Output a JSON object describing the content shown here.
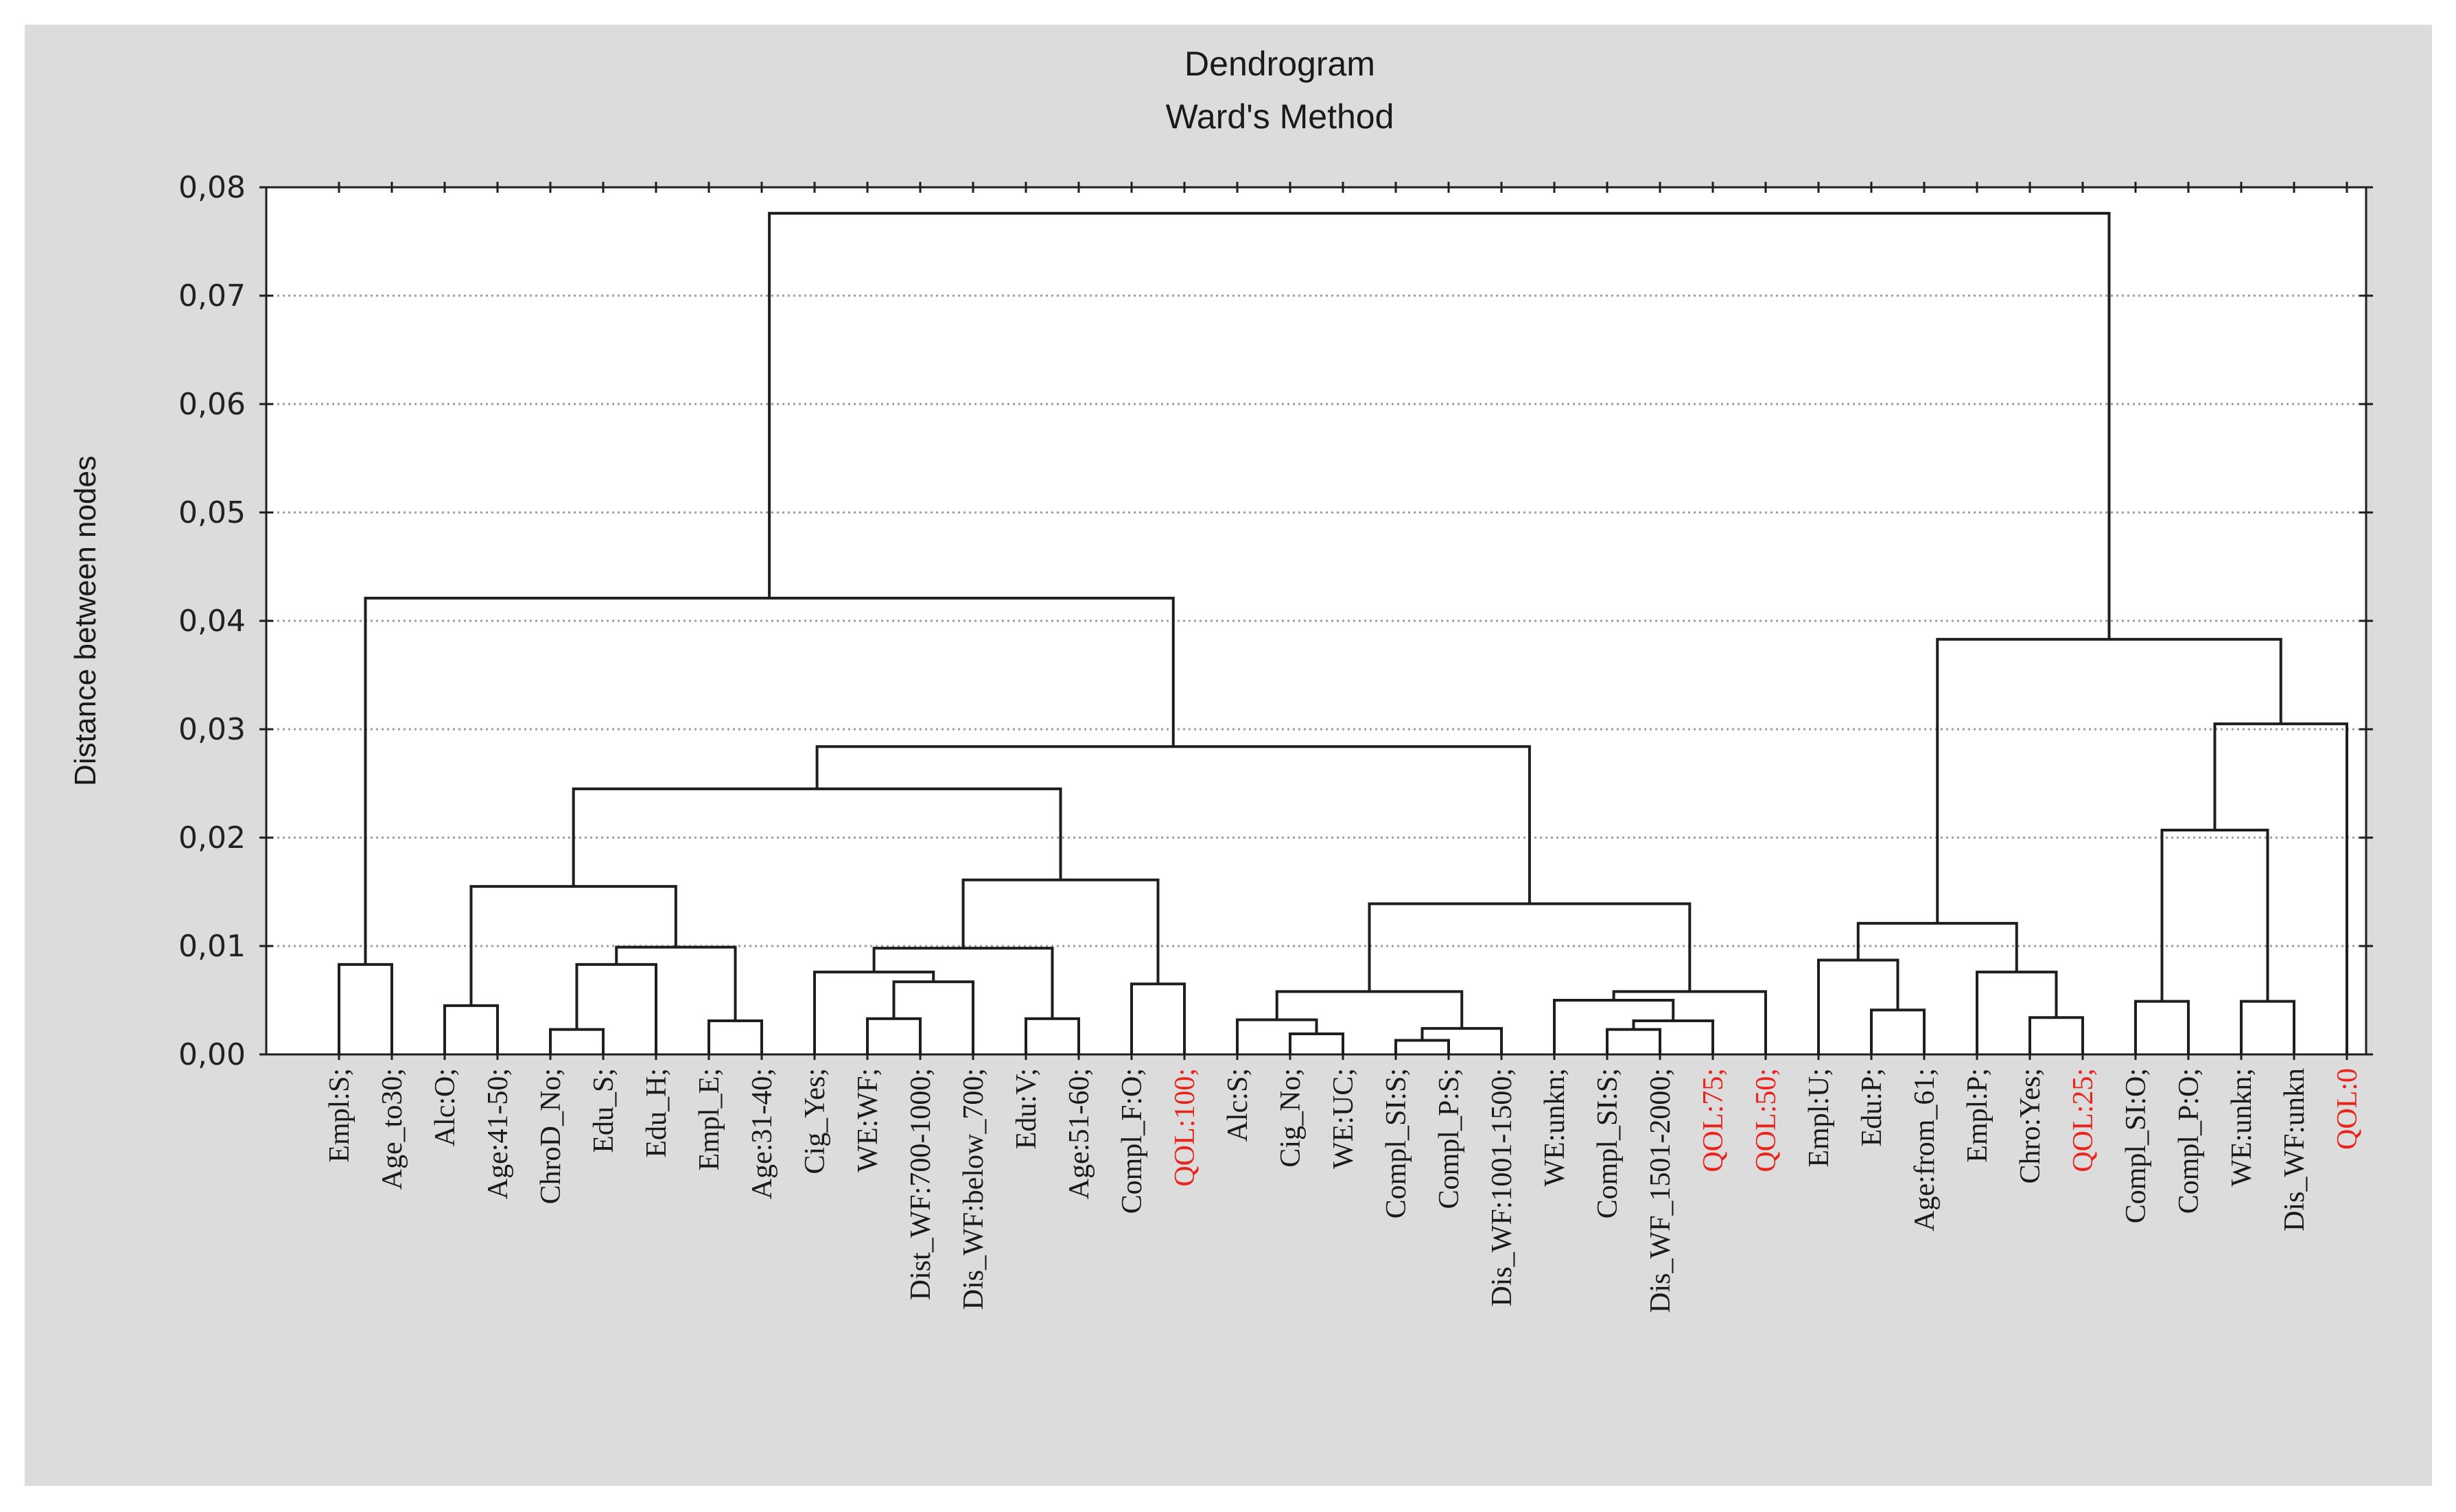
{
  "chart_data": {
    "type": "dendrogram",
    "title": "Dendrogram",
    "subtitle": "Ward's Method",
    "ylabel": "Distance between nodes",
    "xlabel": "",
    "ylim": [
      0,
      0.08
    ],
    "yticks": [
      0,
      0.01,
      0.02,
      0.03,
      0.04,
      0.05,
      0.06,
      0.07,
      0.08
    ],
    "ytick_labels": [
      "0,00",
      "0,01",
      "0,02",
      "0,03",
      "0,04",
      "0,05",
      "0,06",
      "0,07",
      "0,08"
    ],
    "grid": true,
    "highlight_color": "#e8241c",
    "leaves": [
      {
        "label": "Empl:S;",
        "highlight": false
      },
      {
        "label": "Age_to30;",
        "highlight": false
      },
      {
        "label": "Alc:O;",
        "highlight": false
      },
      {
        "label": "Age:41-50;",
        "highlight": false
      },
      {
        "label": "ChroD_No;",
        "highlight": false
      },
      {
        "label": "Edu_S;",
        "highlight": false
      },
      {
        "label": "Edu_H;",
        "highlight": false
      },
      {
        "label": "Empl_E;",
        "highlight": false
      },
      {
        "label": "Age:31-40;",
        "highlight": false
      },
      {
        "label": "Cig_Yes;",
        "highlight": false
      },
      {
        "label": "WE:WF;",
        "highlight": false
      },
      {
        "label": "Dist_WF:700-1000;",
        "highlight": false
      },
      {
        "label": "Dis_WF:below_700;",
        "highlight": false
      },
      {
        "label": "Edu:V;",
        "highlight": false
      },
      {
        "label": "Age:51-60;",
        "highlight": false
      },
      {
        "label": "Compl_F:O;",
        "highlight": false
      },
      {
        "label": "QOL:100;",
        "highlight": true
      },
      {
        "label": "Alc:S;",
        "highlight": false
      },
      {
        "label": "Cig_No;",
        "highlight": false
      },
      {
        "label": "WE:UC;",
        "highlight": false
      },
      {
        "label": "Compl_SI:S;",
        "highlight": false
      },
      {
        "label": "Compl_P:S;",
        "highlight": false
      },
      {
        "label": "Dis_WF:1001-1500;",
        "highlight": false
      },
      {
        "label": "WE:unkn;",
        "highlight": false
      },
      {
        "label": "Compl_SI:S;",
        "highlight": false
      },
      {
        "label": "Dis_WF_1501-2000;",
        "highlight": false
      },
      {
        "label": "QOL:75;",
        "highlight": true
      },
      {
        "label": "QOL:50;",
        "highlight": true
      },
      {
        "label": "Empl:U;",
        "highlight": false
      },
      {
        "label": "Edu:P;",
        "highlight": false
      },
      {
        "label": "Age:from_61;",
        "highlight": false
      },
      {
        "label": "Empl:P;",
        "highlight": false
      },
      {
        "label": "Chro:Yes;",
        "highlight": false
      },
      {
        "label": "QOL:25;",
        "highlight": true
      },
      {
        "label": "Compl_SI:O;",
        "highlight": false
      },
      {
        "label": "Compl_P:O;",
        "highlight": false
      },
      {
        "label": "WE:unkn;",
        "highlight": false
      },
      {
        "label": "Dis_WF:unkn",
        "highlight": false
      },
      {
        "label": "QOL:0",
        "highlight": true
      }
    ],
    "merges": [
      {
        "id": "m1",
        "left": 0,
        "right": 1,
        "height": 0.0083
      },
      {
        "id": "m2",
        "left": 2,
        "right": 3,
        "height": 0.0045
      },
      {
        "id": "m3",
        "left": 4,
        "right": 5,
        "height": 0.0023
      },
      {
        "id": "m4",
        "left": "m3",
        "right": 6,
        "height": 0.0083
      },
      {
        "id": "m5",
        "left": 7,
        "right": 8,
        "height": 0.0031
      },
      {
        "id": "m6",
        "left": "m4",
        "right": "m5",
        "height": 0.0099
      },
      {
        "id": "m7",
        "left": "m2",
        "right": "m6",
        "height": 0.0155
      },
      {
        "id": "m8",
        "left": 10,
        "right": 11,
        "height": 0.0033
      },
      {
        "id": "m9",
        "left": "m8",
        "right": 12,
        "height": 0.0067
      },
      {
        "id": "m10",
        "left": 9,
        "right": "m9",
        "height": 0.0076
      },
      {
        "id": "m11",
        "left": 13,
        "right": 14,
        "height": 0.0033
      },
      {
        "id": "m12",
        "left": "m10",
        "right": "m11",
        "height": 0.0098
      },
      {
        "id": "m13",
        "left": 15,
        "right": 16,
        "height": 0.0065
      },
      {
        "id": "m14",
        "left": "m12",
        "right": "m13",
        "height": 0.0161
      },
      {
        "id": "m15",
        "left": "m7",
        "right": "m14",
        "height": 0.0245
      },
      {
        "id": "m16",
        "left": 18,
        "right": 19,
        "height": 0.0019
      },
      {
        "id": "m17",
        "left": 17,
        "right": "m16",
        "height": 0.0032
      },
      {
        "id": "m18",
        "left": 20,
        "right": 21,
        "height": 0.0013
      },
      {
        "id": "m19",
        "left": "m18",
        "right": 22,
        "height": 0.0024
      },
      {
        "id": "m20",
        "left": "m17",
        "right": "m19",
        "height": 0.0058
      },
      {
        "id": "m21",
        "left": 24,
        "right": 25,
        "height": 0.0023
      },
      {
        "id": "m22",
        "left": "m21",
        "right": 26,
        "height": 0.0031
      },
      {
        "id": "m23",
        "left": 23,
        "right": "m22",
        "height": 0.005
      },
      {
        "id": "m24",
        "left": "m23",
        "right": 27,
        "height": 0.0058
      },
      {
        "id": "m25",
        "left": "m20",
        "right": "m24",
        "height": 0.0139
      },
      {
        "id": "m26",
        "left": "m15",
        "right": "m25",
        "height": 0.0284
      },
      {
        "id": "m27",
        "left": "m1",
        "right": "m26",
        "height": 0.0421
      },
      {
        "id": "m28",
        "left": 29,
        "right": 30,
        "height": 0.0041
      },
      {
        "id": "m29",
        "left": 28,
        "right": "m28",
        "height": 0.0087
      },
      {
        "id": "m30",
        "left": 32,
        "right": 33,
        "height": 0.0034
      },
      {
        "id": "m31",
        "left": 31,
        "right": "m30",
        "height": 0.0076
      },
      {
        "id": "m32",
        "left": "m29",
        "right": "m31",
        "height": 0.0121
      },
      {
        "id": "m33",
        "left": 34,
        "right": 35,
        "height": 0.0049
      },
      {
        "id": "m34",
        "left": 36,
        "right": 37,
        "height": 0.0049
      },
      {
        "id": "m35",
        "left": "m33",
        "right": "m34",
        "height": 0.0207
      },
      {
        "id": "m36",
        "left": "m35",
        "right": 38,
        "height": 0.0305
      },
      {
        "id": "m37",
        "left": "m32",
        "right": "m36",
        "height": 0.0383
      },
      {
        "id": "m38",
        "left": "m27",
        "right": "m37",
        "height": 0.0776
      }
    ]
  }
}
